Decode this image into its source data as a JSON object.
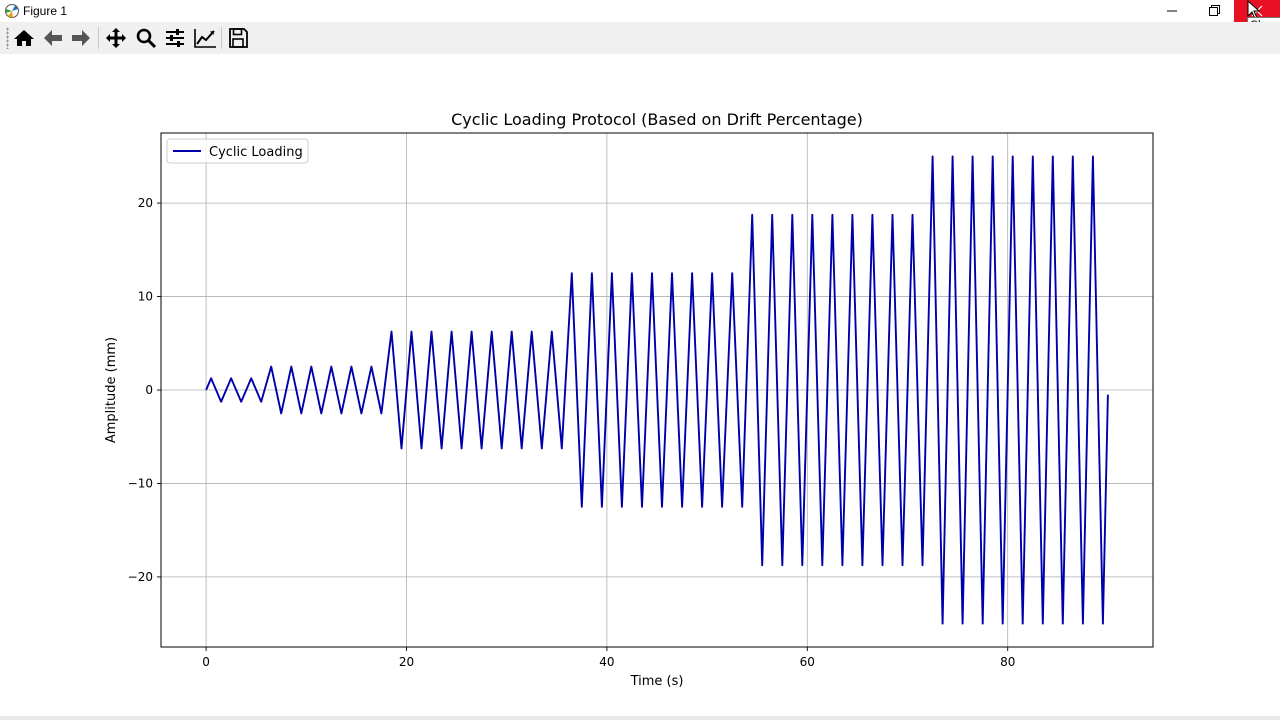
{
  "window": {
    "title": "Figure 1",
    "tooltip": "Close"
  },
  "toolbar": {
    "buttons": [
      {
        "name": "home",
        "icon": "home-icon"
      },
      {
        "name": "back",
        "icon": "arrow-left-icon"
      },
      {
        "name": "forward",
        "icon": "arrow-right-icon"
      },
      {
        "name": "pan",
        "icon": "move-icon"
      },
      {
        "name": "zoom",
        "icon": "magnifier-icon"
      },
      {
        "name": "configure-subplots",
        "icon": "sliders-icon"
      },
      {
        "name": "edit-axes",
        "icon": "line-chart-icon"
      },
      {
        "name": "save",
        "icon": "floppy-disk-icon"
      }
    ]
  },
  "chart_data": {
    "type": "line",
    "title": "Cyclic Loading Protocol (Based on Drift Percentage)",
    "xlabel": "Time (s)",
    "ylabel": "Amplitude (mm)",
    "xlim": [
      -4.5,
      94.5
    ],
    "ylim": [
      -27.5,
      27.5
    ],
    "xticks": [
      0,
      20,
      40,
      60,
      80
    ],
    "xtick_labels": [
      "0",
      "20",
      "40",
      "60",
      "80"
    ],
    "yticks": [
      -20,
      -10,
      0,
      10,
      20
    ],
    "ytick_labels": [
      "−20",
      "−10",
      "0",
      "10",
      "20"
    ],
    "grid": true,
    "legend": "upper left",
    "series": [
      {
        "name": "Cyclic Loading",
        "color": "#0000aa",
        "cycle_period": 2,
        "amplitude_steps": [
          {
            "cycles": 3,
            "amplitude": 1.25
          },
          {
            "cycles": 6,
            "amplitude": 2.5
          },
          {
            "cycles": 9,
            "amplitude": 6.25
          },
          {
            "cycles": 9,
            "amplitude": 12.5
          },
          {
            "cycles": 9,
            "amplitude": 18.75
          },
          {
            "cycles": 9,
            "amplitude": 25
          }
        ],
        "end": {
          "x": 90,
          "y": -0.5
        }
      }
    ]
  }
}
